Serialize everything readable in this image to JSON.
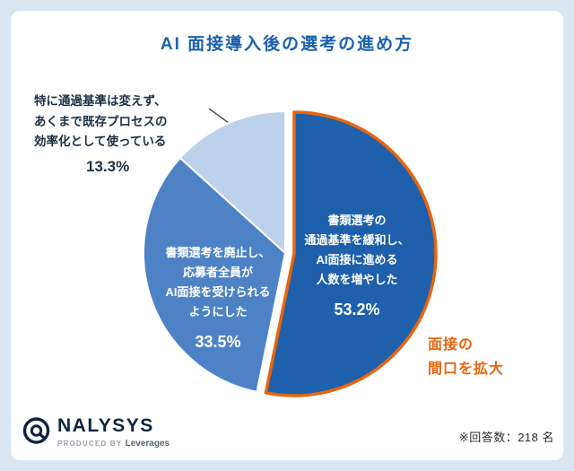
{
  "colors": {
    "background": "#dbe5f0",
    "card": "#ffffff",
    "title": "#1a61ad",
    "accent": "#e8650f",
    "callout_text": "#1e2f44",
    "logo_navy": "#0e2440"
  },
  "chart_data": {
    "type": "pie",
    "title": "AI 面接導入後の選考の進め方",
    "legend_position": "none",
    "slices": [
      {
        "label": "書類選考の\n通過基準を緩和し、\nAI面接に進める\n人数を増やした",
        "pct_label": "53.2%",
        "value": 53.2,
        "color": "#1e60ac",
        "text_color": "#ffffff",
        "emphasis": true
      },
      {
        "label": "書類選考を廃止し、\n応募者全員が\nAI面接を受けられる\nようにした",
        "pct_label": "33.5%",
        "value": 33.5,
        "color": "#4d83c6",
        "text_color": "#ffffff",
        "emphasis": false
      },
      {
        "label": "特に通過基準は変えず、\nあくまで既存プロセスの\n効率化として使っている",
        "pct_label": "13.3%",
        "value": 13.3,
        "color": "#bcd1ec",
        "text_color": "#1e2f44",
        "emphasis": false,
        "label_outside": true
      }
    ],
    "annotation": "面接の\n間口を拡大"
  },
  "footer": {
    "logo_text": "NALYSYS",
    "produced_by": "PRODUCED BY",
    "producer": "Leverages",
    "note": "※回答数：218 名"
  }
}
